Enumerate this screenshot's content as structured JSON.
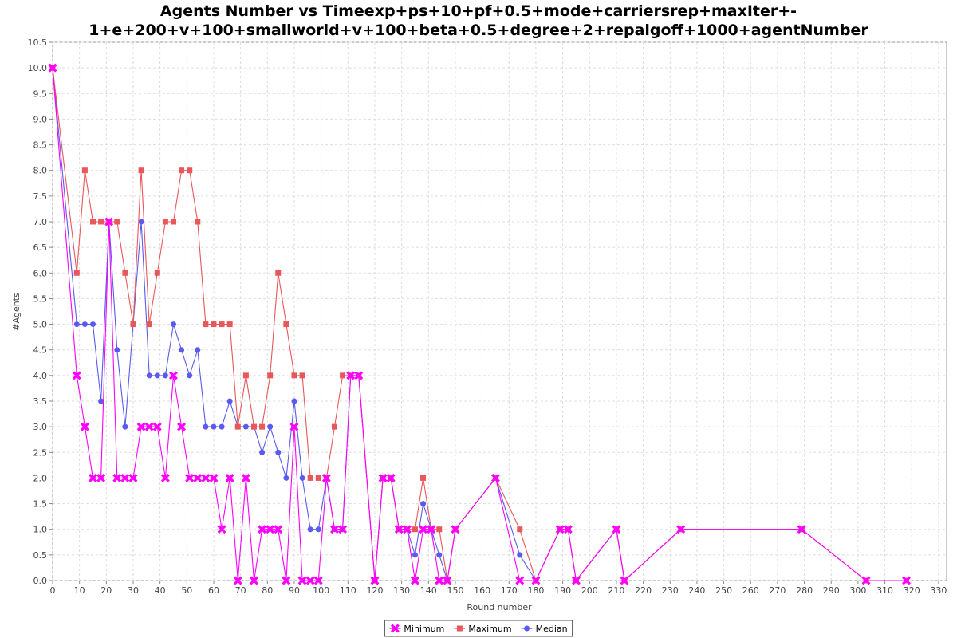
{
  "chart_data": {
    "type": "line",
    "title_lines": [
      "Agents Number vs Timeexp+ps+10+pf+0.5+mode+carriersrep+maxIter+-",
      "1+e+200+v+100+smallworld+v+100+beta+0.5+degree+2+repalgoff+1000+agentNumber"
    ],
    "xlabel": "Round number",
    "ylabel": "#Agents",
    "xlim": [
      0,
      333
    ],
    "ylim": [
      0,
      10.5
    ],
    "x_ticks": [
      0,
      10,
      20,
      30,
      40,
      50,
      60,
      70,
      80,
      90,
      100,
      110,
      120,
      130,
      140,
      150,
      160,
      170,
      180,
      190,
      200,
      210,
      220,
      230,
      240,
      250,
      260,
      270,
      280,
      290,
      300,
      310,
      320,
      330
    ],
    "y_ticks": [
      "0.0",
      "0.5",
      "1.0",
      "1.5",
      "2.0",
      "2.5",
      "3.0",
      "3.5",
      "4.0",
      "4.5",
      "5.0",
      "5.5",
      "6.0",
      "6.5",
      "7.0",
      "7.5",
      "8.0",
      "8.5",
      "9.0",
      "9.5",
      "10.0",
      "10.5"
    ],
    "grid": true,
    "legend_position": "bottom",
    "series": [
      {
        "name": "Minimum",
        "color": "#ff00ff",
        "marker": "x",
        "points": [
          [
            0,
            10
          ],
          [
            9,
            4
          ],
          [
            12,
            3
          ],
          [
            15,
            2
          ],
          [
            18,
            2
          ],
          [
            21,
            7
          ],
          [
            24,
            2
          ],
          [
            27,
            2
          ],
          [
            30,
            2
          ],
          [
            33,
            3
          ],
          [
            36,
            3
          ],
          [
            39,
            3
          ],
          [
            42,
            2
          ],
          [
            45,
            4
          ],
          [
            48,
            3
          ],
          [
            51,
            2
          ],
          [
            54,
            2
          ],
          [
            57,
            2
          ],
          [
            60,
            2
          ],
          [
            63,
            1
          ],
          [
            66,
            2
          ],
          [
            69,
            0
          ],
          [
            72,
            2
          ],
          [
            75,
            0
          ],
          [
            78,
            1
          ],
          [
            81,
            1
          ],
          [
            84,
            1
          ],
          [
            87,
            0
          ],
          [
            90,
            3
          ],
          [
            93,
            0
          ],
          [
            96,
            0
          ],
          [
            99,
            0
          ],
          [
            102,
            2
          ],
          [
            105,
            1
          ],
          [
            108,
            1
          ],
          [
            111,
            4
          ],
          [
            114,
            4
          ],
          [
            120,
            0
          ],
          [
            123,
            2
          ],
          [
            126,
            2
          ],
          [
            129,
            1
          ],
          [
            132,
            1
          ],
          [
            135,
            0
          ],
          [
            138,
            1
          ],
          [
            141,
            1
          ],
          [
            144,
            0
          ],
          [
            147,
            0
          ],
          [
            150,
            1
          ],
          [
            165,
            2
          ],
          [
            174,
            0
          ],
          [
            180,
            0
          ],
          [
            189,
            1
          ],
          [
            192,
            1
          ],
          [
            195,
            0
          ],
          [
            210,
            1
          ],
          [
            213,
            0
          ],
          [
            234,
            1
          ],
          [
            279,
            1
          ],
          [
            303,
            0
          ],
          [
            318,
            0
          ]
        ]
      },
      {
        "name": "Maximum",
        "color": "#e8575a",
        "marker": "square",
        "points": [
          [
            0,
            10
          ],
          [
            9,
            6
          ],
          [
            12,
            8
          ],
          [
            15,
            7
          ],
          [
            18,
            7
          ],
          [
            21,
            7
          ],
          [
            24,
            7
          ],
          [
            27,
            6
          ],
          [
            30,
            5
          ],
          [
            33,
            8
          ],
          [
            36,
            5
          ],
          [
            39,
            6
          ],
          [
            42,
            7
          ],
          [
            45,
            7
          ],
          [
            48,
            8
          ],
          [
            51,
            8
          ],
          [
            54,
            7
          ],
          [
            57,
            5
          ],
          [
            60,
            5
          ],
          [
            63,
            5
          ],
          [
            66,
            5
          ],
          [
            69,
            3
          ],
          [
            72,
            4
          ],
          [
            75,
            3
          ],
          [
            78,
            3
          ],
          [
            81,
            4
          ],
          [
            84,
            6
          ],
          [
            87,
            5
          ],
          [
            90,
            4
          ],
          [
            93,
            4
          ],
          [
            96,
            2
          ],
          [
            99,
            2
          ],
          [
            102,
            2
          ],
          [
            105,
            3
          ],
          [
            108,
            4
          ],
          [
            111,
            4
          ],
          [
            114,
            4
          ],
          [
            120,
            0
          ],
          [
            123,
            2
          ],
          [
            126,
            2
          ],
          [
            129,
            1
          ],
          [
            132,
            1
          ],
          [
            135,
            1
          ],
          [
            138,
            2
          ],
          [
            141,
            1
          ],
          [
            144,
            1
          ],
          [
            147,
            0
          ],
          [
            150,
            1
          ],
          [
            165,
            2
          ],
          [
            174,
            1
          ],
          [
            180,
            0
          ],
          [
            189,
            1
          ],
          [
            192,
            1
          ],
          [
            195,
            0
          ],
          [
            210,
            1
          ],
          [
            213,
            0
          ],
          [
            234,
            1
          ],
          [
            279,
            1
          ],
          [
            303,
            0
          ],
          [
            318,
            0
          ]
        ]
      },
      {
        "name": "Median",
        "color": "#5a5aee",
        "marker": "circle",
        "points": [
          [
            0,
            10
          ],
          [
            9,
            5
          ],
          [
            12,
            5
          ],
          [
            15,
            5
          ],
          [
            18,
            3.5
          ],
          [
            21,
            7
          ],
          [
            24,
            4.5
          ],
          [
            27,
            3
          ],
          [
            30,
            5
          ],
          [
            33,
            7
          ],
          [
            36,
            4
          ],
          [
            39,
            4
          ],
          [
            42,
            4
          ],
          [
            45,
            5
          ],
          [
            48,
            4.5
          ],
          [
            51,
            4
          ],
          [
            54,
            4.5
          ],
          [
            57,
            3
          ],
          [
            60,
            3
          ],
          [
            63,
            3
          ],
          [
            66,
            3.5
          ],
          [
            69,
            3
          ],
          [
            72,
            3
          ],
          [
            75,
            3
          ],
          [
            78,
            2.5
          ],
          [
            81,
            3
          ],
          [
            84,
            2.5
          ],
          [
            87,
            2
          ],
          [
            90,
            3.5
          ],
          [
            93,
            2
          ],
          [
            96,
            1
          ],
          [
            99,
            1
          ],
          [
            102,
            2
          ],
          [
            105,
            1
          ],
          [
            108,
            1
          ],
          [
            111,
            4
          ],
          [
            114,
            4
          ],
          [
            120,
            0
          ],
          [
            123,
            2
          ],
          [
            126,
            2
          ],
          [
            129,
            1
          ],
          [
            132,
            1
          ],
          [
            135,
            0.5
          ],
          [
            138,
            1.5
          ],
          [
            141,
            1
          ],
          [
            144,
            0.5
          ],
          [
            147,
            0
          ],
          [
            150,
            1
          ],
          [
            165,
            2
          ],
          [
            174,
            0.5
          ],
          [
            180,
            0
          ],
          [
            189,
            1
          ],
          [
            192,
            1
          ],
          [
            195,
            0
          ],
          [
            210,
            1
          ],
          [
            213,
            0
          ],
          [
            234,
            1
          ],
          [
            279,
            1
          ],
          [
            303,
            0
          ],
          [
            318,
            0
          ]
        ]
      }
    ]
  }
}
